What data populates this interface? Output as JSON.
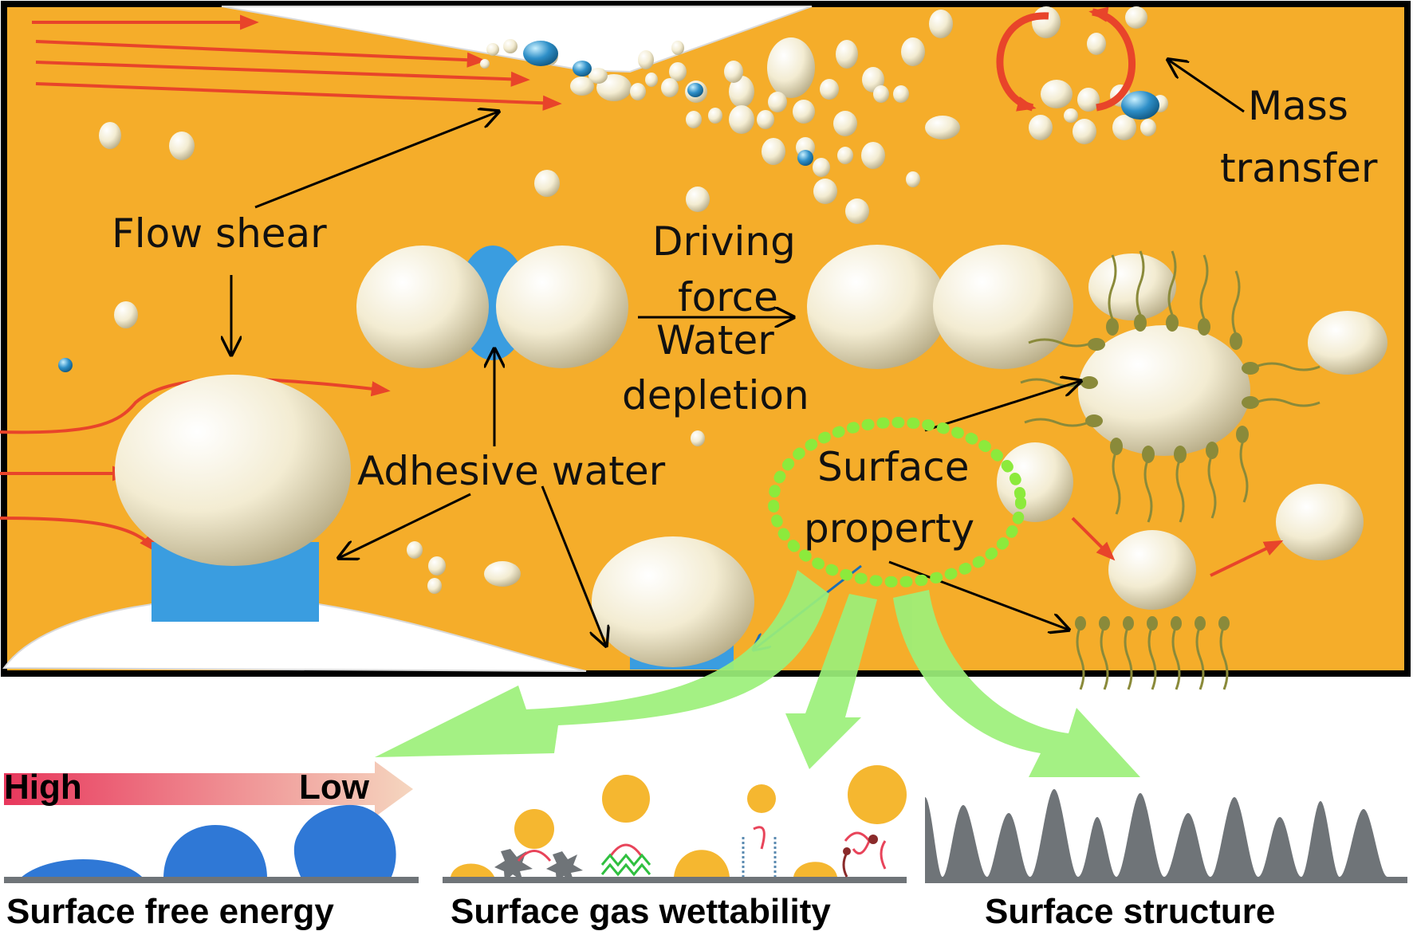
{
  "labels": {
    "flow_shear": "Flow shear",
    "mass": "Mass",
    "transfer": "transfer",
    "driving": "Driving",
    "force": "force",
    "water": "Water",
    "depletion": "depletion",
    "adhesive_water": "Adhesive water",
    "surface": "Surface",
    "property": "property",
    "high": "High",
    "low": "Low",
    "surface_free_energy": "Surface free energy",
    "surface_gas_wettability": "Surface gas wettability",
    "surface_structure": "Surface structure"
  },
  "colors": {
    "liquid_background": "#f5ad2a",
    "bubble": "#f4eed6",
    "adhesive_water": "#3a9de0",
    "flow_arrow": "#e8442a",
    "dotted_ring": "#8cea3c",
    "green_arrow": "#9cf07a",
    "spike": "#6f7478",
    "gradient_high": "#e83a5e",
    "gradient_low": "#f3c7b0"
  }
}
